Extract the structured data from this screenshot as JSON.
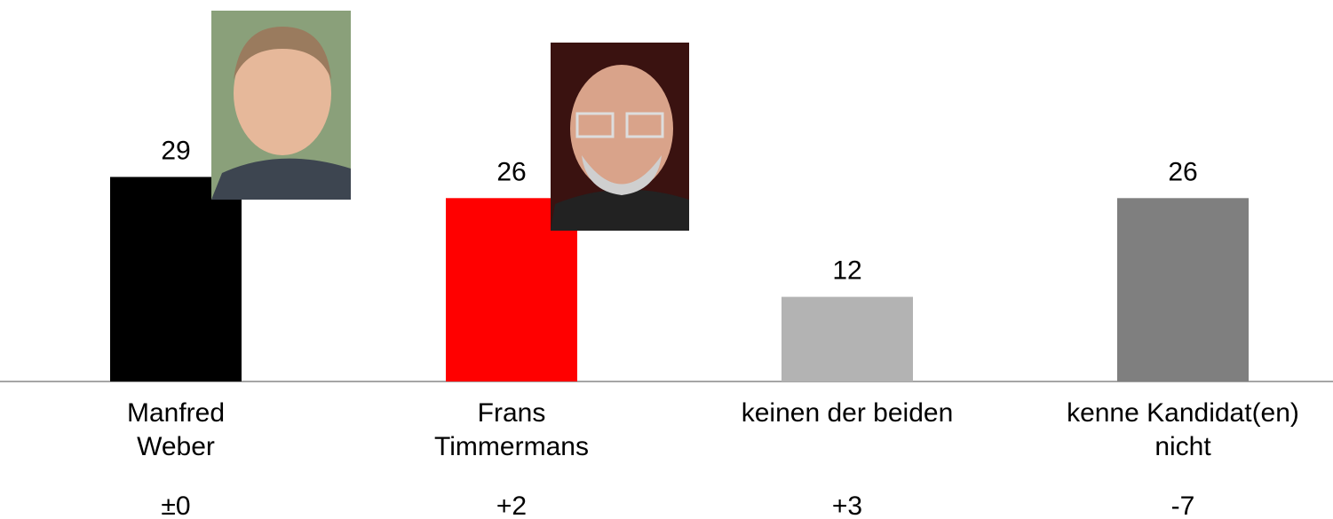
{
  "chart_data": {
    "type": "bar",
    "categories": [
      "Manfred\nWeber",
      "Frans\nTimmermans",
      "keinen der beiden",
      "kenne Kandidat(en)\nnicht"
    ],
    "values": [
      29,
      26,
      12,
      26
    ],
    "colors": [
      "#000000",
      "#ff0000",
      "#b3b3b3",
      "#7f7f7f"
    ],
    "changes": [
      "±0",
      "+2",
      "+3",
      "-7"
    ]
  }
}
